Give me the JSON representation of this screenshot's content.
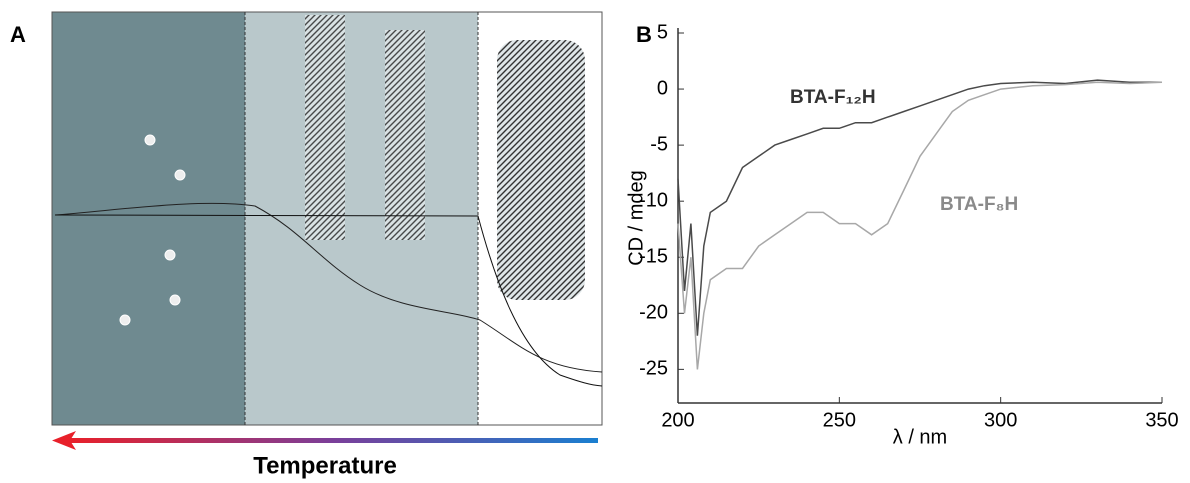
{
  "panel_a": {
    "label": "A",
    "axis_label": "Temperature"
  },
  "chart_data": {
    "type": "line",
    "panel_label": "B",
    "x_label": "λ / nm",
    "y_label": "CD / mdeg",
    "x": [
      200,
      202,
      204,
      206,
      208,
      210,
      215,
      220,
      225,
      230,
      235,
      240,
      245,
      250,
      255,
      260,
      265,
      270,
      275,
      280,
      285,
      290,
      295,
      300,
      310,
      320,
      330,
      340,
      350
    ],
    "series": [
      {
        "name": "BTA-F₁₂H",
        "color": "#4a4a4a",
        "values": [
          -8,
          -18,
          -12,
          -22,
          -14,
          -11,
          -10,
          -7,
          -6,
          -5,
          -4.5,
          -4,
          -3.5,
          -3.5,
          -3,
          -3,
          -2.5,
          -2,
          -1.5,
          -1,
          -0.5,
          0,
          0.3,
          0.5,
          0.6,
          0.5,
          0.8,
          0.6,
          0.6
        ]
      },
      {
        "name": "BTA-F₈H",
        "color": "#a8a8a8",
        "values": [
          -12,
          -20,
          -15,
          -25,
          -20,
          -17,
          -16,
          -16,
          -14,
          -13,
          -12,
          -11,
          -11,
          -12,
          -12,
          -13,
          -12,
          -9,
          -6,
          -4,
          -2,
          -1,
          -0.5,
          0,
          0.3,
          0.4,
          0.6,
          0.5,
          0.6
        ]
      }
    ],
    "xlim": [
      200,
      350
    ],
    "xticks": [
      200,
      250,
      300,
      350
    ],
    "ylim": [
      -28,
      5
    ],
    "yticks": [
      -25,
      -20,
      -15,
      -10,
      -5,
      0,
      5
    ]
  }
}
